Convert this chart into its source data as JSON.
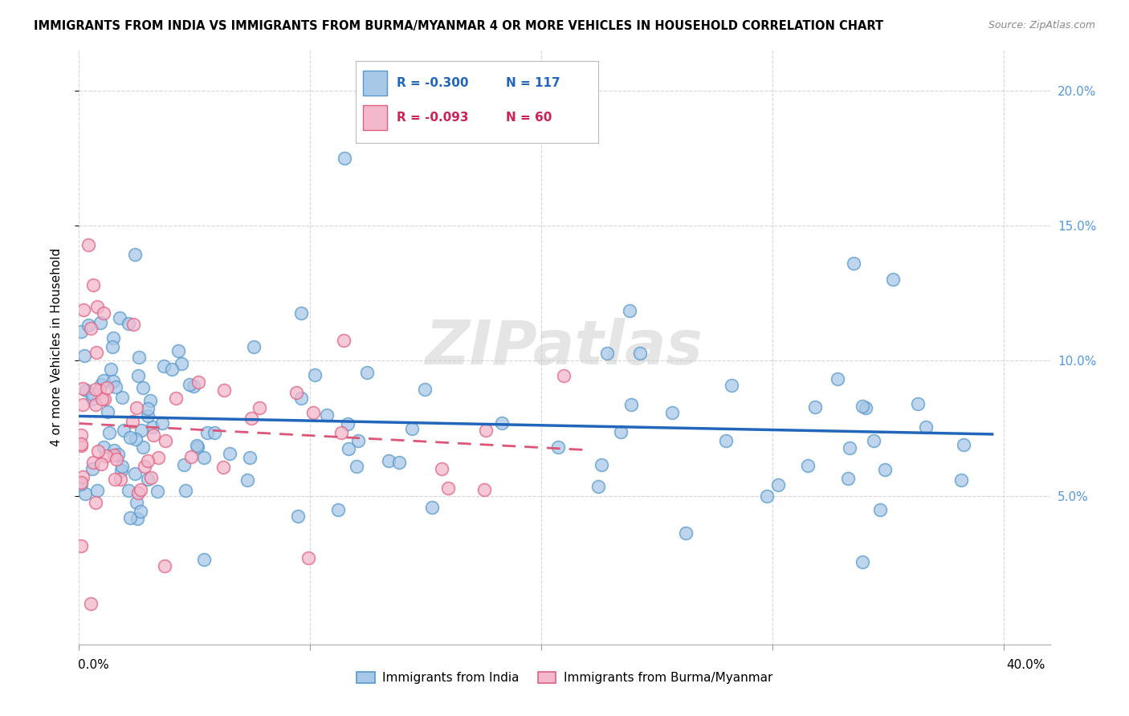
{
  "title": "IMMIGRANTS FROM INDIA VS IMMIGRANTS FROM BURMA/MYANMAR 4 OR MORE VEHICLES IN HOUSEHOLD CORRELATION CHART",
  "source": "Source: ZipAtlas.com",
  "ylabel": "4 or more Vehicles in Household",
  "xlim": [
    0.0,
    0.42
  ],
  "ylim": [
    -0.005,
    0.215
  ],
  "watermark": "ZIPatlas",
  "legend_india_R": "R = -0.300",
  "legend_india_N": "N = 117",
  "legend_burma_R": "R = -0.093",
  "legend_burma_N": "N = 60",
  "india_color": "#a8c8e8",
  "india_edge_color": "#5599cc",
  "burma_color": "#f4b8cc",
  "burma_edge_color": "#e06080",
  "india_line_color": "#2266bb",
  "burma_line_color": "#dd5577",
  "background_color": "#ffffff",
  "grid_color": "#cccccc",
  "right_tick_color": "#5599dd",
  "title_fontsize": 10.5,
  "source_fontsize": 9,
  "axis_fontsize": 11,
  "legend_fontsize": 11
}
